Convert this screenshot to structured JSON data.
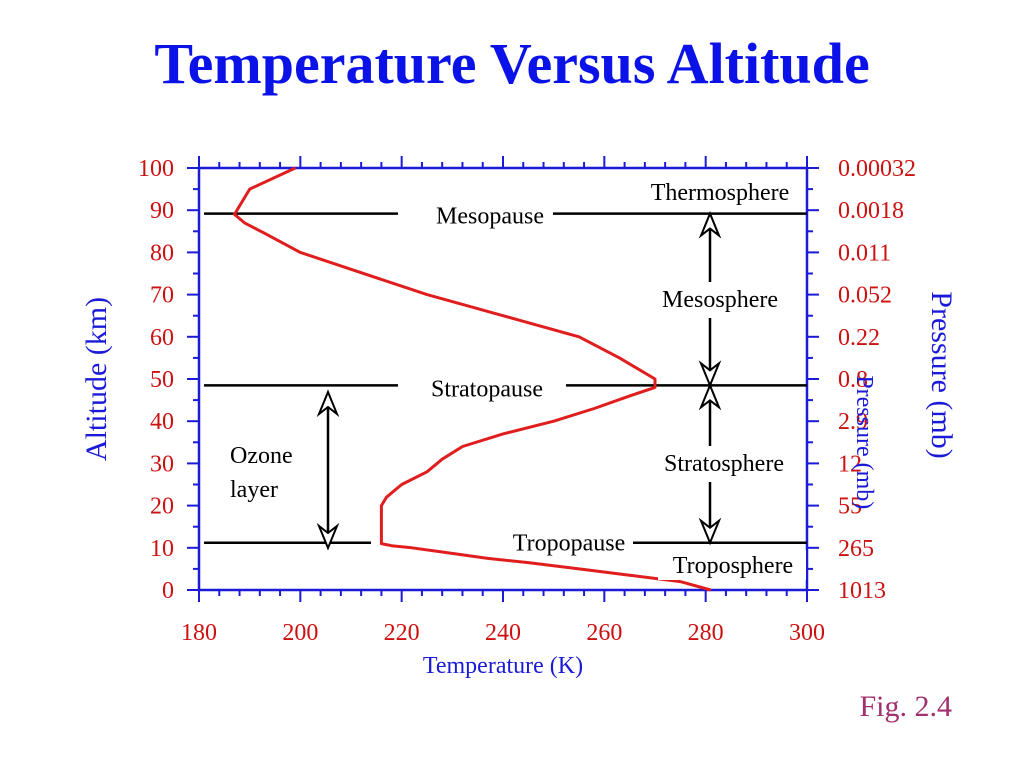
{
  "slide": {
    "title": "Temperature Versus Altitude",
    "figure_label": "Fig. 2.4"
  },
  "colors": {
    "title": "#0b12e8",
    "axis": "#1a1ad8",
    "tick_labels": "#cc1111",
    "curve": "#e01e1e",
    "annotations": "#000000",
    "figure_label": "#a0306e"
  },
  "chart_data": {
    "type": "line",
    "title": "Temperature Versus Altitude",
    "xlabel": "Temperature (K)",
    "ylabel": "Altitude (km)",
    "y2label": "Pressure (mb)",
    "xlim": [
      180,
      300
    ],
    "ylim": [
      0,
      100
    ],
    "x_ticks": [
      180,
      200,
      220,
      240,
      260,
      280,
      300
    ],
    "y_ticks": [
      0,
      10,
      20,
      30,
      40,
      50,
      60,
      70,
      80,
      90,
      100
    ],
    "pressure_ticks": [
      {
        "altitude": 100,
        "label": "0.00032"
      },
      {
        "altitude": 90,
        "label": "0.0018"
      },
      {
        "altitude": 80,
        "label": "0.011"
      },
      {
        "altitude": 70,
        "label": "0.052"
      },
      {
        "altitude": 60,
        "label": "0.22"
      },
      {
        "altitude": 50,
        "label": "0.8"
      },
      {
        "altitude": 40,
        "label": "2.9"
      },
      {
        "altitude": 30,
        "label": "12"
      },
      {
        "altitude": 20,
        "label": "55"
      },
      {
        "altitude": 10,
        "label": "265"
      },
      {
        "altitude": 0,
        "label": "1013"
      }
    ],
    "grid": false,
    "series": [
      {
        "x": [
          281,
          275,
          265,
          255,
          245,
          237,
          228,
          222,
          218,
          216,
          216,
          216,
          217,
          220,
          225,
          228,
          232,
          240,
          250,
          258,
          265,
          270,
          270,
          263,
          255,
          240,
          225,
          210,
          200,
          193,
          189,
          187,
          188,
          190,
          199
        ],
        "y": [
          0,
          2,
          3.5,
          5,
          6.5,
          7.5,
          9,
          10,
          10.5,
          11,
          15,
          20,
          22,
          25,
          28,
          31,
          34,
          37,
          40,
          43,
          46,
          48,
          50,
          55,
          60,
          65,
          70,
          76,
          80,
          84.5,
          87,
          89,
          91,
          95,
          100
        ]
      }
    ],
    "levels": [
      {
        "name": "Mesopause",
        "altitude": 89.2
      },
      {
        "name": "Stratopause",
        "altitude": 48.5
      },
      {
        "name": "Tropopause",
        "altitude": 11.2
      }
    ],
    "annotations": {
      "layers": [
        "Thermosphere",
        "Mesosphere",
        "Stratosphere",
        "Troposphere"
      ],
      "ozone_label": [
        "Ozone",
        "layer"
      ]
    },
    "overlapping_label": "Pressure (mb)"
  }
}
